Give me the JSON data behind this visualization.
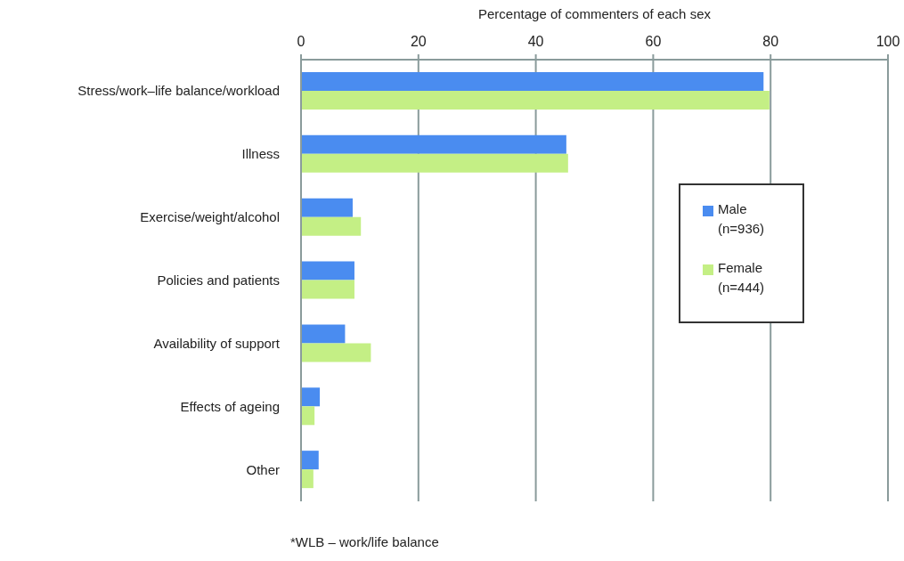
{
  "chart_data": {
    "type": "bar",
    "orientation": "horizontal",
    "xlabel": "Percentage of commenters of each sex",
    "categories": [
      "Stress/work–life balance/workload",
      "Illness",
      "Exercise/weight/alcohol",
      "Policies and patients",
      "Availability of support",
      "Effects of ageing",
      "Other"
    ],
    "series": [
      {
        "name": "Male (n=936)",
        "color": "#4a8cf0",
        "values": [
          78.8,
          45.2,
          8.8,
          9.1,
          7.5,
          3.2,
          3.0
        ]
      },
      {
        "name": "Female (n=444)",
        "color": "#c4ef85",
        "values": [
          79.8,
          45.5,
          10.2,
          9.1,
          11.9,
          2.3,
          2.1
        ]
      }
    ],
    "xlim": [
      0,
      100
    ],
    "xticks": [
      0,
      20,
      40,
      60,
      80,
      100
    ],
    "grid": "x",
    "legend": "right",
    "annotations": [
      "*WLB – work/life balance"
    ]
  }
}
